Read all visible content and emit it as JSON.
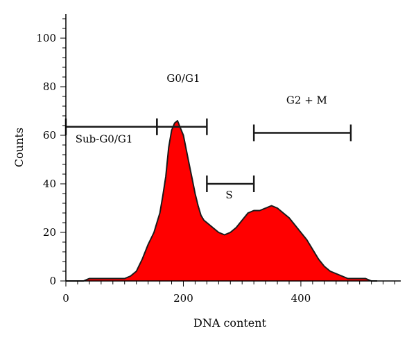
{
  "chart_data": {
    "type": "area",
    "xlabel": "DNA content",
    "ylabel": "Counts",
    "xlim": [
      0,
      570
    ],
    "ylim": [
      0,
      110
    ],
    "x_ticks": [
      0,
      200,
      400
    ],
    "y_ticks": [
      0,
      20,
      40,
      60,
      80,
      100
    ],
    "fill_color": "#ff0000",
    "outline_color": "#1a1a1a",
    "series": [
      {
        "x": [
          0,
          30,
          40,
          50,
          60,
          70,
          80,
          90,
          100,
          110,
          120,
          130,
          140,
          150,
          155,
          160,
          165,
          170,
          175,
          180,
          185,
          190,
          195,
          200,
          205,
          210,
          215,
          220,
          225,
          230,
          235,
          240,
          250,
          260,
          270,
          280,
          290,
          300,
          310,
          320,
          330,
          340,
          350,
          360,
          370,
          380,
          390,
          400,
          410,
          420,
          430,
          440,
          450,
          460,
          470,
          480,
          490,
          500,
          510,
          520,
          530
        ],
        "y": [
          0,
          0,
          1,
          1,
          1,
          1,
          1,
          1,
          1,
          2,
          4,
          9,
          15,
          20,
          24,
          28,
          35,
          43,
          55,
          62,
          65,
          66,
          63,
          60,
          54,
          48,
          42,
          36,
          31,
          27,
          25,
          24,
          22,
          20,
          19,
          20,
          22,
          25,
          28,
          29,
          29,
          30,
          31,
          30,
          28,
          26,
          23,
          20,
          17,
          13,
          9,
          6,
          4,
          3,
          2,
          1,
          1,
          1,
          1,
          0,
          0
        ]
      }
    ],
    "annotations": [
      {
        "text": "G0/G1",
        "x": 200,
        "y": 82
      },
      {
        "text": "G2 + M",
        "x": 410,
        "y": 73
      },
      {
        "text": "Sub-G0/G1",
        "x": 65,
        "y": 57
      },
      {
        "text": "S",
        "x": 278,
        "y": 34
      }
    ],
    "gates": [
      {
        "x1": 0,
        "x2": 155,
        "y": 63.5
      },
      {
        "x1": 155,
        "x2": 240,
        "y": 63.5
      },
      {
        "x1": 240,
        "x2": 320,
        "y": 40
      },
      {
        "x1": 320,
        "x2": 485,
        "y": 61
      }
    ]
  }
}
